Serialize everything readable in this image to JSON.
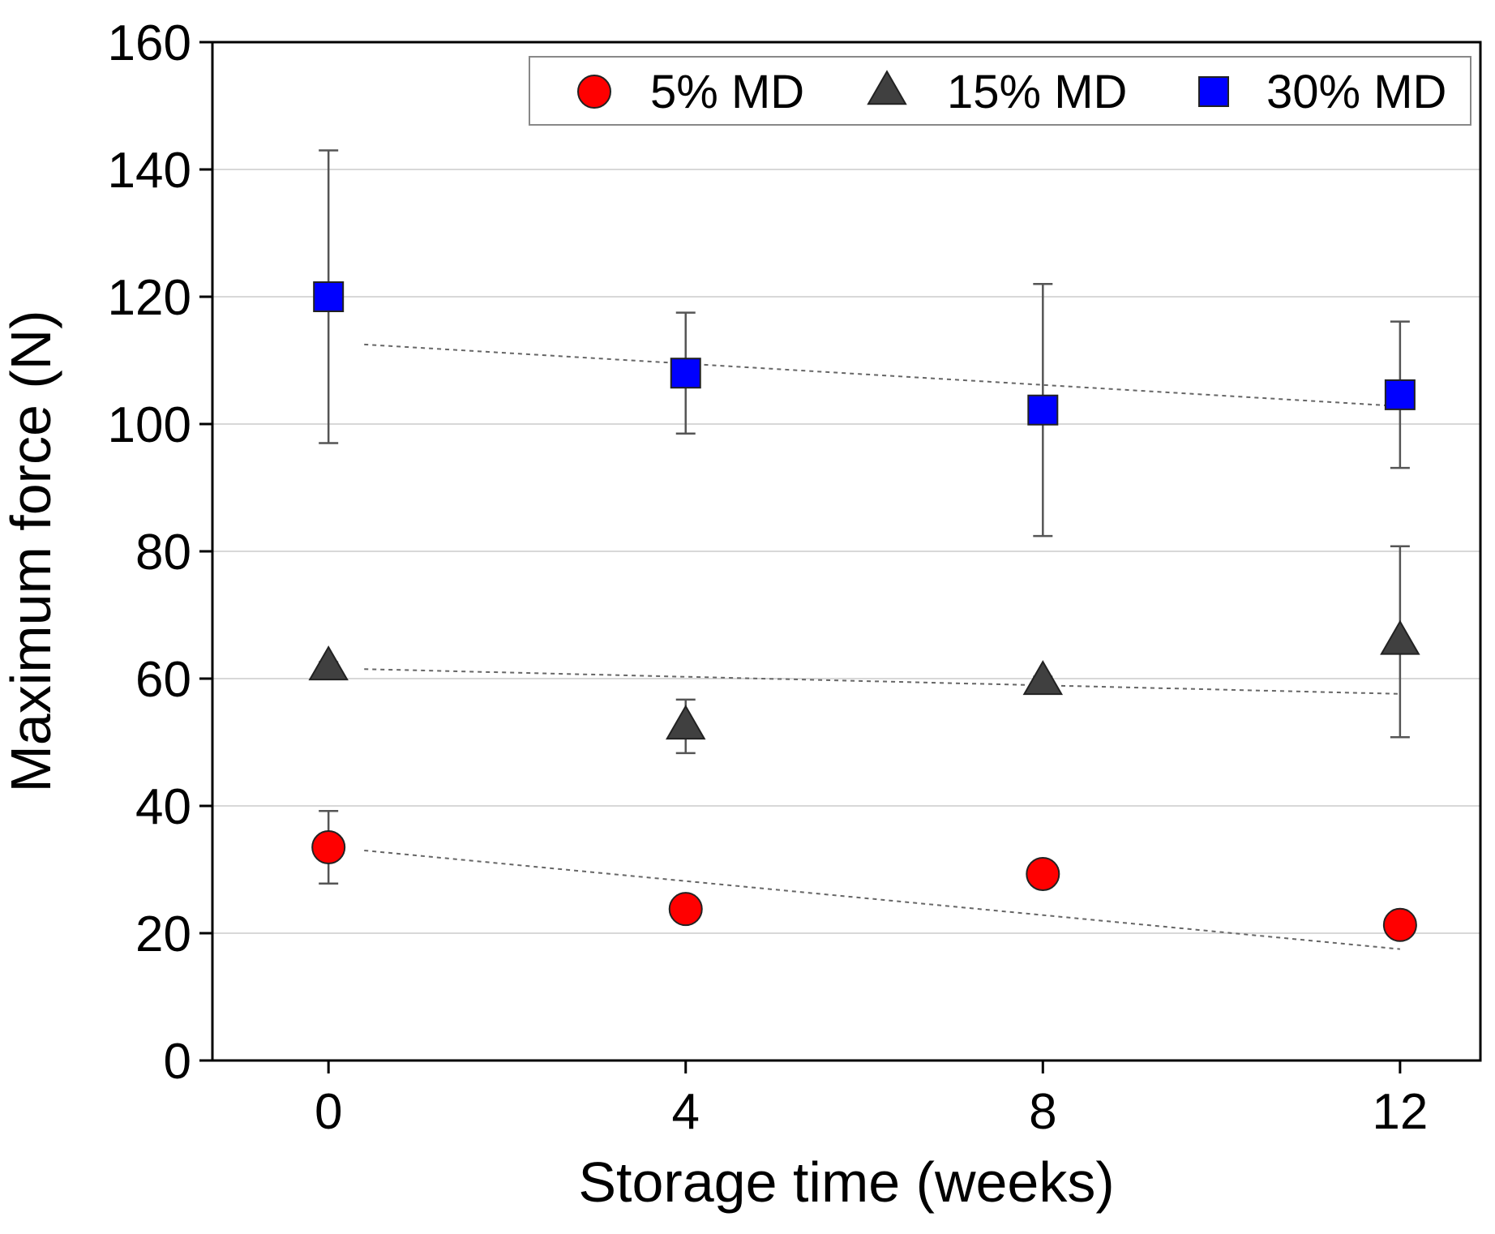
{
  "chart_data": {
    "type": "scatter",
    "xlabel": "Storage time (weeks)",
    "ylabel": "Maximum force (N)",
    "xlim": [
      -1.3,
      12.9
    ],
    "ylim": [
      0,
      160
    ],
    "xticks": [
      0,
      4,
      8,
      12
    ],
    "yticks": [
      0,
      20,
      40,
      60,
      80,
      100,
      120,
      140,
      160
    ],
    "grid": "horizontal",
    "legend_position": "top-right",
    "series": [
      {
        "name": "5% MD",
        "marker": "circle",
        "color": "#ff0000",
        "x": [
          0,
          4,
          8,
          12
        ],
        "y": [
          33.5,
          23.8,
          29.3,
          21.3
        ],
        "error": [
          5.7,
          1.2,
          0.6,
          1.2
        ],
        "trend": [
          33.0,
          17.5
        ]
      },
      {
        "name": "15% MD",
        "marker": "triangle",
        "color": "#404040",
        "x": [
          0,
          4,
          8,
          12
        ],
        "y": [
          61.8,
          52.5,
          59.5,
          65.8
        ],
        "error": [
          0.8,
          4.2,
          0.8,
          15.0
        ],
        "trend": [
          61.5,
          57.6
        ]
      },
      {
        "name": "30% MD",
        "marker": "square",
        "color": "#0000ff",
        "x": [
          0,
          4,
          8,
          12
        ],
        "y": [
          120.0,
          108.0,
          102.2,
          104.6
        ],
        "error": [
          23.0,
          9.5,
          19.8,
          11.5
        ],
        "trend": [
          112.5,
          102.8
        ]
      }
    ]
  }
}
